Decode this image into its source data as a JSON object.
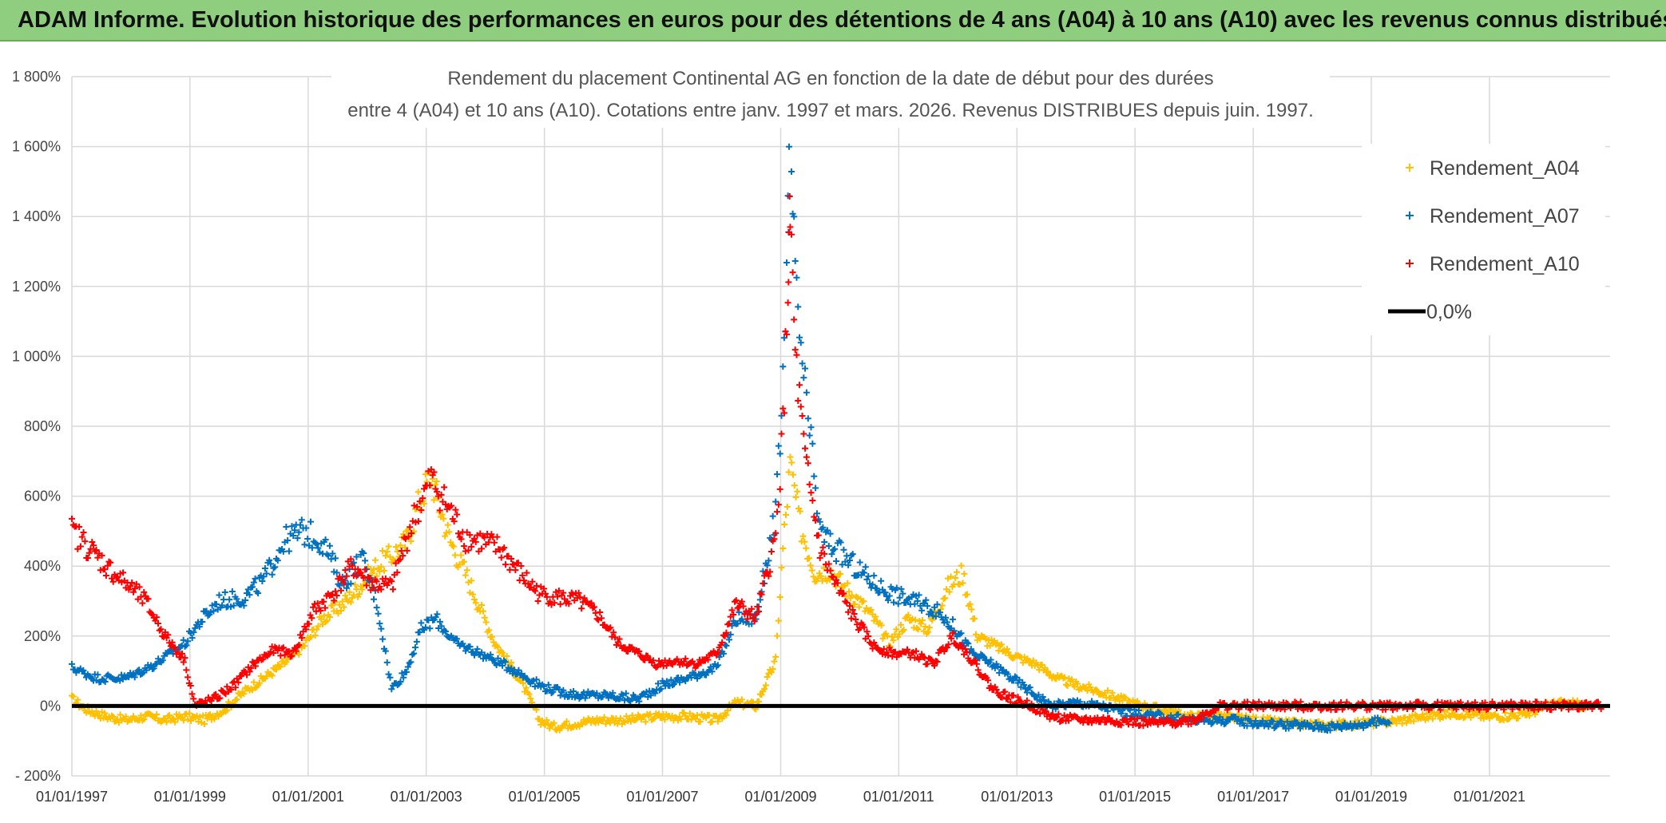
{
  "banner": {
    "title": "ADAM Informe. Evolution historique des performances en euros pour des détentions de 4 ans (A04) à 10 ans (A10) avec les revenus connus distribués"
  },
  "colors": {
    "banner_bg": "#8fce7f",
    "series_a04": "#ffc000",
    "series_a07": "#0070c0",
    "series_a10": "#ff0000",
    "zero_line": "#000000",
    "grid": "#d9d9d9"
  },
  "chart_data": {
    "type": "scatter",
    "title_line1": "Rendement du placement Continental AG en fonction de la date de début pour des durées",
    "title_line2": "entre 4 (A04) et 10 ans (A10). Cotations entre janv. 1997 et mars. 2026. Revenus DISTRIBUES depuis juin. 1997.",
    "x_axis": {
      "type": "date",
      "range": [
        "1997-01-01",
        "2023-01-01"
      ],
      "tick_labels": [
        "01/01/1997",
        "01/01/1999",
        "01/01/2001",
        "01/01/2003",
        "01/01/2005",
        "01/01/2007",
        "01/01/2009",
        "01/01/2011",
        "01/01/2013",
        "01/01/2015",
        "01/01/2017",
        "01/01/2019",
        "01/01/2021"
      ]
    },
    "y_axis": {
      "unit": "%",
      "range": [
        -200,
        1800
      ],
      "tick_values": [
        -200,
        0,
        200,
        400,
        600,
        800,
        1000,
        1200,
        1400,
        1600,
        1800
      ],
      "tick_labels": [
        "- 200%",
        "0%",
        "200%",
        "400%",
        "600%",
        "800%",
        "1 000%",
        "1 200%",
        "1 400%",
        "1 600%",
        "1 800%"
      ]
    },
    "grid": true,
    "legend": {
      "position": "top-right",
      "entries": [
        {
          "label": "Rendement_A04",
          "marker": "plus",
          "series": "a04"
        },
        {
          "label": "Rendement_A07",
          "marker": "plus",
          "series": "a07"
        },
        {
          "label": "Rendement_A10",
          "marker": "plus",
          "series": "a10"
        },
        {
          "label": "0,0%",
          "marker": "line",
          "series": "zero"
        }
      ]
    },
    "series": [
      {
        "key": "a04",
        "name": "Rendement_A04",
        "marker": "plus",
        "points": [
          [
            "1997-01-01",
            20
          ],
          [
            "1997-04-01",
            -10
          ],
          [
            "1997-08-01",
            -30
          ],
          [
            "1997-12-01",
            -40
          ],
          [
            "1998-04-01",
            -30
          ],
          [
            "1998-08-01",
            -40
          ],
          [
            "1998-12-01",
            -30
          ],
          [
            "1999-04-01",
            -40
          ],
          [
            "1999-08-01",
            -10
          ],
          [
            "1999-12-01",
            40
          ],
          [
            "2000-04-01",
            80
          ],
          [
            "2000-08-01",
            120
          ],
          [
            "2000-12-01",
            170
          ],
          [
            "2001-04-01",
            250
          ],
          [
            "2001-08-01",
            290
          ],
          [
            "2001-12-01",
            350
          ],
          [
            "2002-03-01",
            400
          ],
          [
            "2002-06-01",
            430
          ],
          [
            "2002-09-01",
            470
          ],
          [
            "2002-12-01",
            600
          ],
          [
            "2003-02-01",
            660
          ],
          [
            "2003-04-01",
            560
          ],
          [
            "2003-06-01",
            470
          ],
          [
            "2003-09-01",
            380
          ],
          [
            "2003-12-01",
            280
          ],
          [
            "2004-03-01",
            180
          ],
          [
            "2004-06-01",
            120
          ],
          [
            "2004-09-01",
            50
          ],
          [
            "2004-12-01",
            -40
          ],
          [
            "2005-03-01",
            -60
          ],
          [
            "2005-07-01",
            -50
          ],
          [
            "2005-12-01",
            -40
          ],
          [
            "2006-06-01",
            -40
          ],
          [
            "2006-12-01",
            -30
          ],
          [
            "2007-06-01",
            -30
          ],
          [
            "2007-12-01",
            -40
          ],
          [
            "2008-04-01",
            10
          ],
          [
            "2008-08-01",
            0
          ],
          [
            "2008-12-01",
            130
          ],
          [
            "2009-01-15",
            450
          ],
          [
            "2009-03-01",
            690
          ],
          [
            "2009-05-01",
            520
          ],
          [
            "2009-08-01",
            380
          ],
          [
            "2009-11-01",
            390
          ],
          [
            "2010-02-01",
            340
          ],
          [
            "2010-05-01",
            300
          ],
          [
            "2010-08-01",
            250
          ],
          [
            "2010-11-01",
            180
          ],
          [
            "2011-03-01",
            250
          ],
          [
            "2011-07-01",
            220
          ],
          [
            "2011-11-01",
            340
          ],
          [
            "2012-02-01",
            380
          ],
          [
            "2012-05-01",
            200
          ],
          [
            "2012-09-01",
            170
          ],
          [
            "2013-01-01",
            140
          ],
          [
            "2013-05-01",
            120
          ],
          [
            "2013-09-01",
            80
          ],
          [
            "2014-01-01",
            60
          ],
          [
            "2014-06-01",
            40
          ],
          [
            "2014-12-01",
            10
          ],
          [
            "2015-06-01",
            -10
          ],
          [
            "2015-12-01",
            -30
          ],
          [
            "2016-06-01",
            -30
          ],
          [
            "2017-01-01",
            -40
          ],
          [
            "2017-08-01",
            -50
          ],
          [
            "2018-03-01",
            -55
          ],
          [
            "2018-10-01",
            -50
          ],
          [
            "2019-05-01",
            -45
          ],
          [
            "2019-12-01",
            -30
          ],
          [
            "2020-06-01",
            -20
          ],
          [
            "2021-01-01",
            -30
          ],
          [
            "2021-08-01",
            -25
          ],
          [
            "2022-03-01",
            10
          ],
          [
            "2022-09-01",
            0
          ]
        ]
      },
      {
        "key": "a07",
        "name": "Rendement_A07",
        "marker": "plus",
        "points": [
          [
            "1997-01-01",
            110
          ],
          [
            "1997-06-01",
            80
          ],
          [
            "1997-12-01",
            80
          ],
          [
            "1998-06-01",
            120
          ],
          [
            "1998-12-01",
            180
          ],
          [
            "1999-03-01",
            240
          ],
          [
            "1999-07-01",
            300
          ],
          [
            "1999-12-01",
            310
          ],
          [
            "2000-04-01",
            360
          ],
          [
            "2000-08-01",
            470
          ],
          [
            "2000-12-01",
            500
          ],
          [
            "2001-04-01",
            470
          ],
          [
            "2001-08-01",
            350
          ],
          [
            "2001-12-01",
            420
          ],
          [
            "2002-03-01",
            300
          ],
          [
            "2002-06-01",
            50
          ],
          [
            "2002-09-01",
            100
          ],
          [
            "2002-12-01",
            220
          ],
          [
            "2003-03-01",
            250
          ],
          [
            "2003-07-01",
            180
          ],
          [
            "2003-12-01",
            150
          ],
          [
            "2004-06-01",
            110
          ],
          [
            "2004-12-01",
            60
          ],
          [
            "2005-04-01",
            40
          ],
          [
            "2005-09-01",
            30
          ],
          [
            "2006-02-01",
            30
          ],
          [
            "2006-08-01",
            20
          ],
          [
            "2007-01-01",
            60
          ],
          [
            "2007-06-01",
            80
          ],
          [
            "2007-12-01",
            110
          ],
          [
            "2008-04-01",
            250
          ],
          [
            "2008-08-01",
            250
          ],
          [
            "2008-12-01",
            550
          ],
          [
            "2009-01-15",
            900
          ],
          [
            "2009-02-15",
            1400
          ],
          [
            "2009-03-01",
            1640
          ],
          [
            "2009-04-01",
            1200
          ],
          [
            "2009-06-01",
            900
          ],
          [
            "2009-09-01",
            500
          ],
          [
            "2009-12-01",
            450
          ],
          [
            "2010-04-01",
            400
          ],
          [
            "2010-08-01",
            350
          ],
          [
            "2010-12-01",
            320
          ],
          [
            "2011-04-01",
            300
          ],
          [
            "2011-08-01",
            280
          ],
          [
            "2011-12-01",
            230
          ],
          [
            "2012-04-01",
            150
          ],
          [
            "2012-08-01",
            120
          ],
          [
            "2012-12-01",
            80
          ],
          [
            "2013-04-01",
            40
          ],
          [
            "2013-08-01",
            0
          ],
          [
            "2014-01-01",
            10
          ],
          [
            "2014-06-01",
            0
          ],
          [
            "2014-12-01",
            -20
          ],
          [
            "2015-06-01",
            -30
          ],
          [
            "2016-01-01",
            -40
          ],
          [
            "2016-08-01",
            -40
          ],
          [
            "2017-03-01",
            -50
          ],
          [
            "2017-10-01",
            -55
          ],
          [
            "2018-05-01",
            -60
          ],
          [
            "2018-12-01",
            -50
          ],
          [
            "2019-05-01",
            -40
          ]
        ]
      },
      {
        "key": "a10",
        "name": "Rendement_A10",
        "marker": "plus",
        "points": [
          [
            "1997-01-01",
            500
          ],
          [
            "1997-04-01",
            460
          ],
          [
            "1997-08-01",
            400
          ],
          [
            "1997-12-01",
            350
          ],
          [
            "1998-04-01",
            300
          ],
          [
            "1998-08-01",
            200
          ],
          [
            "1998-12-01",
            130
          ],
          [
            "1999-02-01",
            0
          ],
          [
            "1999-06-01",
            20
          ],
          [
            "1999-10-01",
            60
          ],
          [
            "2000-02-01",
            120
          ],
          [
            "2000-06-01",
            160
          ],
          [
            "2000-10-01",
            150
          ],
          [
            "2001-02-01",
            270
          ],
          [
            "2001-06-01",
            320
          ],
          [
            "2001-10-01",
            400
          ],
          [
            "2002-02-01",
            350
          ],
          [
            "2002-06-01",
            340
          ],
          [
            "2002-10-01",
            520
          ],
          [
            "2003-02-01",
            650
          ],
          [
            "2003-05-01",
            580
          ],
          [
            "2003-09-01",
            480
          ],
          [
            "2003-12-01",
            470
          ],
          [
            "2004-04-01",
            450
          ],
          [
            "2004-08-01",
            380
          ],
          [
            "2004-12-01",
            320
          ],
          [
            "2005-04-01",
            310
          ],
          [
            "2005-08-01",
            300
          ],
          [
            "2005-12-01",
            260
          ],
          [
            "2006-04-01",
            180
          ],
          [
            "2006-08-01",
            150
          ],
          [
            "2006-12-01",
            120
          ],
          [
            "2007-04-01",
            130
          ],
          [
            "2007-08-01",
            120
          ],
          [
            "2007-12-01",
            150
          ],
          [
            "2008-04-01",
            290
          ],
          [
            "2008-08-01",
            250
          ],
          [
            "2008-12-01",
            480
          ],
          [
            "2009-01-15",
            800
          ],
          [
            "2009-02-15",
            1200
          ],
          [
            "2009-03-01",
            1400
          ],
          [
            "2009-04-01",
            1000
          ],
          [
            "2009-06-01",
            700
          ],
          [
            "2009-09-01",
            450
          ],
          [
            "2009-12-01",
            350
          ],
          [
            "2010-04-01",
            250
          ],
          [
            "2010-08-01",
            170
          ],
          [
            "2010-12-01",
            150
          ],
          [
            "2011-04-01",
            150
          ],
          [
            "2011-08-01",
            120
          ],
          [
            "2011-12-01",
            200
          ],
          [
            "2012-04-01",
            130
          ],
          [
            "2012-08-01",
            50
          ],
          [
            "2012-12-01",
            20
          ],
          [
            "2013-04-01",
            0
          ],
          [
            "2013-08-01",
            -30
          ],
          [
            "2014-01-01",
            -40
          ],
          [
            "2014-06-01",
            -40
          ],
          [
            "2014-12-01",
            -45
          ],
          [
            "2015-06-01",
            -50
          ],
          [
            "2016-01-01",
            -40
          ],
          [
            "2016-06-01",
            0
          ],
          [
            "2017-06-01",
            0
          ],
          [
            "2018-06-01",
            0
          ],
          [
            "2019-06-01",
            0
          ],
          [
            "2020-06-01",
            0
          ],
          [
            "2021-06-01",
            0
          ],
          [
            "2022-06-01",
            0
          ],
          [
            "2022-12-01",
            0
          ]
        ]
      }
    ],
    "zero_line": {
      "y": 0,
      "label": "0,0%"
    }
  }
}
